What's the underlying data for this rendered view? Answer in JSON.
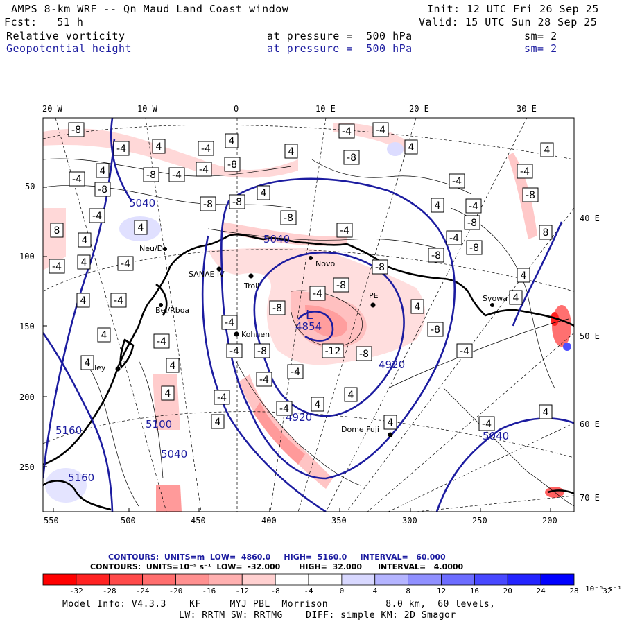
{
  "header": {
    "title": "AMPS 8-km WRF -- Qn Maud Land Coast window",
    "forecast": "Fcst:   51 h",
    "init": "Init: 12 UTC Fri 26 Sep 25",
    "valid": "Valid: 15 UTC Sun 28 Sep 25",
    "field1": {
      "name": "Relative vorticity",
      "level": "at pressure =  500 hPa",
      "sm": "sm= 2"
    },
    "field2": {
      "name": "Geopotential height",
      "level": "at pressure =  500 hPa",
      "sm": "sm= 2"
    }
  },
  "axes": {
    "top_lon": [
      "20 W",
      "10 W",
      "0",
      "10 E",
      "20 E",
      "30 E"
    ],
    "right_lon": [
      "40 E",
      "50 E",
      "60 E",
      "70 E"
    ],
    "left_y": [
      "50",
      "100",
      "150",
      "200",
      "250"
    ],
    "bottom_x": [
      "550",
      "500",
      "450",
      "400",
      "350",
      "300",
      "250",
      "200"
    ]
  },
  "stations": [
    "SANAE IV",
    "Troll",
    "Novo",
    "PE",
    "Syowa",
    "Kohnen",
    "Halley",
    "Dome Fuji",
    "Neu/DI",
    "Bel/Rboa"
  ],
  "height_contours": [
    "5040",
    "4920",
    "4920",
    "4854",
    "5040",
    "5040",
    "5160",
    "5160",
    "5100",
    "5040",
    "L"
  ],
  "vorticity_labels": [
    "-8",
    "-4",
    "4",
    "-4",
    "-8",
    "-4",
    "4",
    "-4",
    "-8",
    "-8",
    "-4",
    "4",
    "4",
    "-4",
    "-4",
    "4",
    "-8",
    "-4",
    "4",
    "-4",
    "-4",
    "4",
    "-8",
    "8",
    "4",
    "4",
    "-4",
    "8",
    "4",
    "4",
    "-4",
    "-4",
    "4",
    "-8",
    "-8",
    "-8",
    "-4",
    "-4",
    "-8",
    "-8",
    "-8",
    "-8",
    "4",
    "-8",
    "-4",
    "4",
    "-8",
    "-8",
    "-4",
    "-4",
    "-4",
    "-8",
    "-12",
    "-8",
    "-4",
    "-4",
    "4",
    "-4",
    "-4",
    "4",
    "4",
    "4",
    "4",
    "-4",
    "4",
    "-4",
    "4",
    "4",
    "4",
    "-4",
    "4"
  ],
  "footer": {
    "contours1": "CONTOURS:  UNITS=m  LOW=  4860.0     HIGH=  5160.0     INTERVAL=   60.000",
    "contours2": "CONTOURS:  UNITS=10⁻⁵ s⁻¹  LOW=  -32.000       HIGH=  32.000      INTERVAL=   4.0000",
    "model_info": "Model Info: V4.3.3    KF     MYJ PBL  Morrison          8.0 km,  60 levels,",
    "physics": "LW: RRTM SW: RRTMG    DIFF: simple KM: 2D Smagor"
  },
  "colorbar": {
    "ticks": [
      "-32",
      "-28",
      "-24",
      "-20",
      "-16",
      "-12",
      "-8",
      "-4",
      "0",
      "4",
      "8",
      "12",
      "16",
      "20",
      "24",
      "28",
      "32"
    ],
    "unit": "10⁻⁵ s⁻¹",
    "colors": [
      "#ff0000",
      "#ff2222",
      "#ff4a4a",
      "#ff6e6e",
      "#ff9090",
      "#ffb0b0",
      "#ffd0d0",
      "#ffffff",
      "#ffffff",
      "#d8d8ff",
      "#b4b4ff",
      "#9090ff",
      "#6c6cff",
      "#4848ff",
      "#2424ff",
      "#0000ff"
    ]
  }
}
